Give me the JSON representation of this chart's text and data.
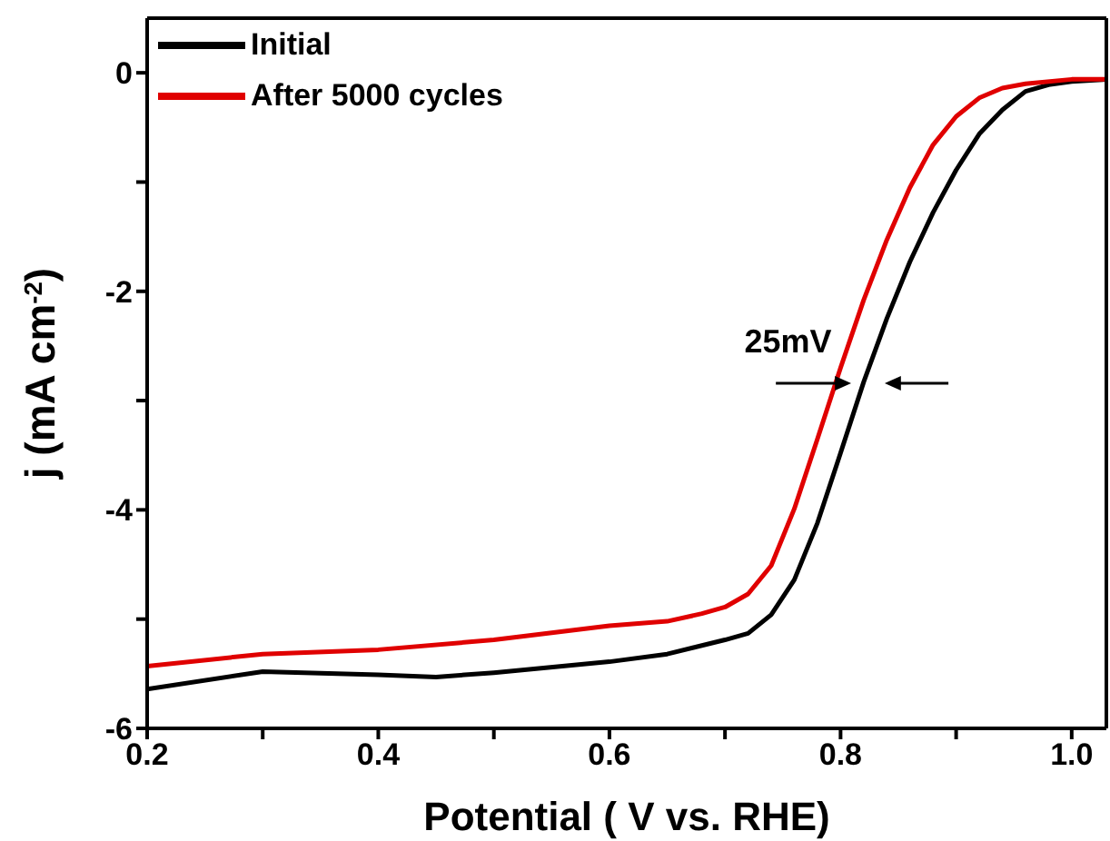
{
  "chart_data": {
    "type": "line",
    "xlabel": "Potential ( V vs. RHE)",
    "ylabel": "j (mA cm$^{-2}$)",
    "xlim": [
      0.2,
      1.03
    ],
    "ylim": [
      -6,
      0.5
    ],
    "xticks": [
      0.2,
      {
        "value": 0.3,
        "label": null
      },
      0.4,
      {
        "value": 0.5,
        "label": null
      },
      0.6,
      {
        "value": 0.7,
        "label": null
      },
      0.8,
      {
        "value": 0.9,
        "label": null
      },
      {
        "value": 1.0,
        "label": "1.0"
      }
    ],
    "yticks": [
      -6,
      {
        "value": -5,
        "label": null
      },
      -4,
      {
        "value": -3,
        "label": null
      },
      -2,
      {
        "value": -1,
        "label": null
      },
      0
    ],
    "grid": false,
    "legend": "top left",
    "marker": "none",
    "line_style": "solid",
    "annotations": [
      {
        "text": "25mV",
        "x": 0.81,
        "y": -2.85
      }
    ],
    "series": [
      {
        "name": "Initial",
        "color": "#000000",
        "x": [
          0.2,
          0.3,
          0.4,
          0.45,
          0.5,
          0.6,
          0.65,
          0.7,
          0.72,
          0.74,
          0.76,
          0.78,
          0.8,
          0.82,
          0.84,
          0.86,
          0.88,
          0.9,
          0.92,
          0.94,
          0.96,
          0.98,
          1.0,
          1.03
        ],
        "values": [
          -5.64,
          -5.48,
          -5.51,
          -5.53,
          -5.49,
          -5.39,
          -5.32,
          -5.19,
          -5.13,
          -4.96,
          -4.64,
          -4.12,
          -3.48,
          -2.83,
          -2.25,
          -1.73,
          -1.28,
          -0.89,
          -0.56,
          -0.34,
          -0.17,
          -0.11,
          -0.08,
          -0.06
        ]
      },
      {
        "name": "After 5000 cycles",
        "color": "#e00000",
        "x": [
          0.2,
          0.3,
          0.4,
          0.5,
          0.6,
          0.65,
          0.68,
          0.7,
          0.72,
          0.74,
          0.76,
          0.78,
          0.8,
          0.82,
          0.84,
          0.86,
          0.88,
          0.9,
          0.92,
          0.94,
          0.96,
          1.0,
          1.03
        ],
        "values": [
          -5.43,
          -5.32,
          -5.28,
          -5.19,
          -5.06,
          -5.02,
          -4.95,
          -4.89,
          -4.77,
          -4.51,
          -3.99,
          -3.35,
          -2.7,
          -2.08,
          -1.53,
          -1.05,
          -0.66,
          -0.4,
          -0.23,
          -0.14,
          -0.1,
          -0.06,
          -0.06
        ]
      }
    ]
  }
}
